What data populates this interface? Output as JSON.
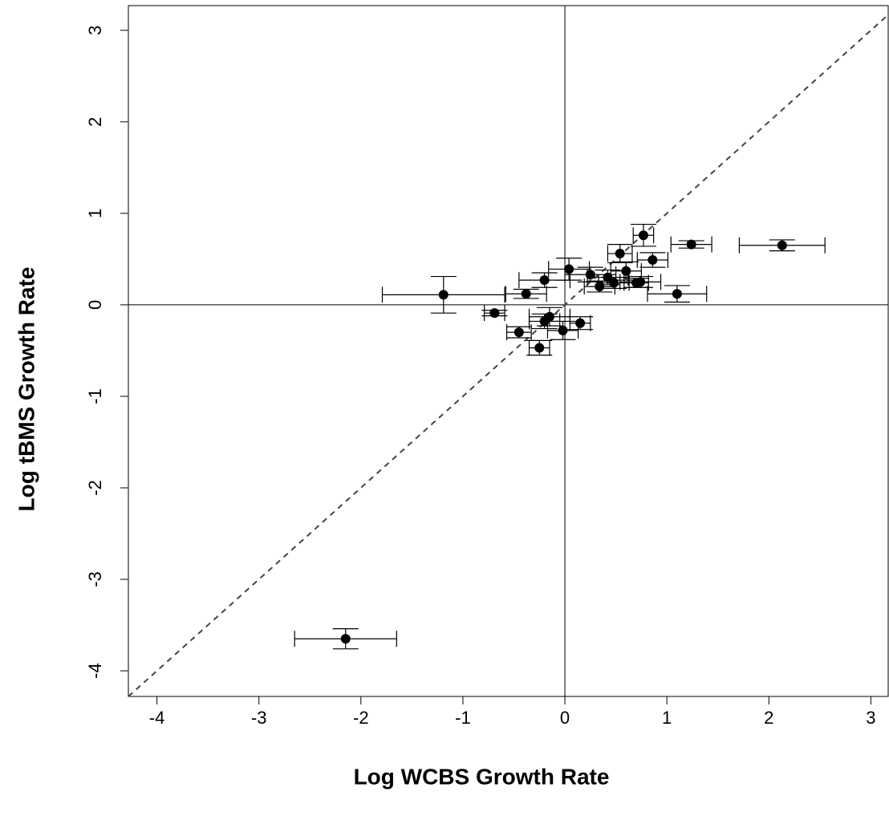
{
  "chart_data": {
    "type": "scatter",
    "x_label": "Log WCBS Growth Rate",
    "y_label": "Log tBMS Growth Rate",
    "xlim": [
      -4.28,
      3.17
    ],
    "ylim": [
      -4.28,
      3.27
    ],
    "xticks": [
      -4,
      -3,
      -2,
      -1,
      0,
      1,
      2,
      3
    ],
    "yticks": [
      -4,
      -3,
      -2,
      -1,
      0,
      1,
      2,
      3
    ],
    "diagonal": true,
    "zero_lines": true,
    "series": [
      {
        "color": "#000000",
        "x": [
          -2.15,
          2.13,
          1.24,
          1.1,
          -1.19,
          -0.69,
          -0.38,
          -0.2,
          0.04,
          0.25,
          0.34,
          0.42,
          0.48,
          0.54,
          0.6,
          0.7,
          0.74,
          0.77,
          0.86,
          -0.45,
          -0.25,
          -0.2,
          -0.15,
          -0.02,
          0.15
        ],
        "values": [
          -3.65,
          0.65,
          0.66,
          0.12,
          0.11,
          -0.09,
          0.12,
          0.27,
          0.39,
          0.33,
          0.2,
          0.3,
          0.24,
          0.56,
          0.37,
          0.24,
          0.25,
          0.76,
          0.49,
          -0.3,
          -0.47,
          -0.18,
          -0.13,
          -0.28,
          -0.2
        ],
        "xerr": [
          0.5,
          0.42,
          0.2,
          0.29,
          0.6,
          0.1,
          0.2,
          0.25,
          0.2,
          0.25,
          0.15,
          0.2,
          0.15,
          0.12,
          0.15,
          0.12,
          0.2,
          0.1,
          0.15,
          0.12,
          0.1,
          0.15,
          0.2,
          0.15,
          0.1
        ],
        "yerr": [
          0.11,
          0.06,
          0.04,
          0.09,
          0.2,
          0.03,
          0.05,
          0.08,
          0.12,
          0.08,
          0.06,
          0.08,
          0.06,
          0.1,
          0.1,
          0.05,
          0.06,
          0.12,
          0.08,
          0.06,
          0.08,
          0.08,
          0.1,
          0.1,
          0.07
        ]
      }
    ]
  }
}
